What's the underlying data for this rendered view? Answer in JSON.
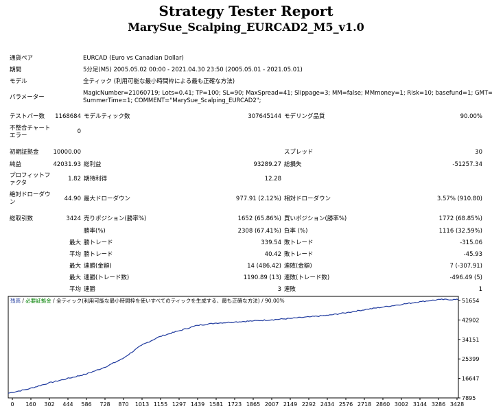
{
  "report": {
    "title": "Strategy Tester Report",
    "subtitle": "MarySue_Scalping_EURCAD2_M5_v1.0"
  },
  "info": {
    "symbol_label": "通貨ペア",
    "symbol_value": "EURCAD (Euro vs Canadian Dollar)",
    "period_label": "期間",
    "period_value": "5分足(M5) 2005.05.02 00:00 - 2021.04.30 23:50 (2005.05.01 - 2021.05.01)",
    "model_label": "モデル",
    "model_value": "全ティック (利用可能な最小時間枠による最も正確な方法)",
    "params_label": "パラメーター",
    "params_line1": "MagicNumber=21060719; Lots=0.41; TP=100; SL=90; MaxSpread=41; Slippage=3; MM=false; MMmoney=1; Risk=10; basefund=1; GMT=2;",
    "params_line2": "SummerTime=1; COMMENT=\"MarySue_Scalping_EURCAD2\";"
  },
  "stats": {
    "bars_label": "テストバー数",
    "bars_value": "1168684",
    "ticks_label": "モデルティック数",
    "ticks_value": "307645144",
    "quality_label": "モデリング品質",
    "quality_value": "90.00%",
    "mismatch_label": "不整合チャート エラー",
    "mismatch_value": "0",
    "deposit_label": "初期証拠金",
    "deposit_value": "10000.00",
    "spread_label": "スプレッド",
    "spread_value": "30",
    "net_label": "純益",
    "net_value": "42031.93",
    "gross_profit_label": "総利益",
    "gross_profit_value": "93289.27",
    "gross_loss_label": "総損失",
    "gross_loss_value": "-51257.34",
    "pf_label": "プロフィットファクタ",
    "pf_value": "1.82",
    "expected_label": "期待利得",
    "expected_value": "12.28",
    "abs_dd_label": "絶対ドローダウン",
    "abs_dd_value": "44.90",
    "max_dd_label": "最大ドローダウン",
    "max_dd_value": "977.91 (2.12%)",
    "rel_dd_label": "相対ドローダウン",
    "rel_dd_value": "3.57% (910.80)",
    "trades_label": "総取引数",
    "trades_value": "3424",
    "short_label": "売りポジション(勝率%)",
    "short_value": "1652 (65.86%)",
    "long_label": "買いポジション(勝率%)",
    "long_value": "1772 (68.85%)",
    "winrate_label": "勝率(%)",
    "winrate_value": "2308 (67.41%)",
    "lossrate_label": "負率 (%)",
    "lossrate_value": "1116 (32.59%)",
    "max1": "最大",
    "largest_win_label": "勝トレード",
    "largest_win_value": "339.54",
    "largest_loss_label": "敗トレード",
    "largest_loss_value": "-315.06",
    "avg": "平均",
    "avg_win_label": "勝トレード",
    "avg_win_value": "40.42",
    "avg_loss_label": "敗トレード",
    "avg_loss_value": "-45.93",
    "max2": "最大",
    "cons_wins_money_label": "連勝(金額)",
    "cons_wins_money_value": "14 (486.42)",
    "cons_losses_money_label": "連敗(金額)",
    "cons_losses_money_value": "7 (-307.91)",
    "max3": "最大",
    "cons_profit_label": "連勝(トレード数)",
    "cons_profit_value": "1190.89 (13)",
    "cons_loss_label": "連敗(トレード数)",
    "cons_loss_value": "-496.49 (5)",
    "avg2": "平均",
    "avg_cons_wins_label": "連勝",
    "avg_cons_wins_value": "3",
    "avg_cons_losses_label": "連敗",
    "avg_cons_losses_value": "1"
  },
  "chart_legend": {
    "balance": "残高",
    "sep1": " / ",
    "margin": "必要証拠金",
    "sep2": " / ",
    "model": "全ティック(利用可能な最小時間枠を使いすべてのティックを生成する、最も正確な方法)",
    "sep3": " / ",
    "quality": "90.00%"
  },
  "colors": {
    "balance_line": "#1f3a9e",
    "margin_text": "#008000",
    "chart_border": "#000000"
  },
  "chart_data": {
    "type": "line",
    "title": "",
    "xlabel": "",
    "ylabel": "",
    "x_ticks": [
      "0",
      "160",
      "302",
      "444",
      "586",
      "728",
      "870",
      "1013",
      "1155",
      "1297",
      "1439",
      "1581",
      "1723",
      "1865",
      "2007",
      "2149",
      "2292",
      "2434",
      "2576",
      "2718",
      "2860",
      "3002",
      "3144",
      "3286",
      "3428"
    ],
    "y_ticks": [
      "7895",
      "16647",
      "25399",
      "34151",
      "42902",
      "51654"
    ],
    "ylim": [
      7895,
      53500
    ],
    "xlim": [
      0,
      3424
    ],
    "series": [
      {
        "x": [
          0,
          160,
          302,
          444,
          586,
          728,
          870,
          1013,
          1155,
          1297,
          1439,
          1581,
          1723,
          1865,
          2007,
          2149,
          2292,
          2434,
          2576,
          2718,
          2860,
          3002,
          3144,
          3286,
          3424
        ],
        "values": [
          10000,
          12000,
          14500,
          16500,
          18500,
          21500,
          25500,
          31500,
          35500,
          38000,
          40500,
          41500,
          42000,
          42500,
          43000,
          43600,
          44300,
          45000,
          46200,
          47600,
          48800,
          50000,
          51200,
          52100,
          52032
        ]
      }
    ]
  }
}
